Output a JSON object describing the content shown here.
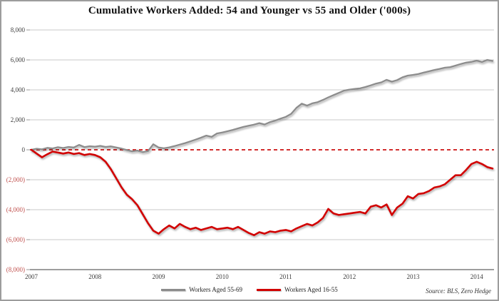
{
  "source": "Source: BLS, Zero Hedge",
  "chart_data": {
    "type": "line",
    "title": "Cumulative Workers Added: 54 and Younger vs 55 and Older ('000s)",
    "ylim": [
      -8000,
      8000
    ],
    "y_step": 2000,
    "grid_on": true,
    "grid_color": "#c9c9c9",
    "axis_color": "#7d7d7d",
    "tick_color": "#9a9a9a",
    "legend_position": "bottom-center",
    "y_tick_labels": [
      "8,000",
      "6,000",
      "4,000",
      "2,000",
      "0",
      "(2,000)",
      "(4,000)",
      "(6,000)",
      "(8,000)"
    ],
    "x_tick_labels": [
      "2007",
      "2008",
      "2009",
      "2010",
      "2011",
      "2012",
      "2013",
      "2014"
    ],
    "x_unit": "months, Jan 2007 - Apr 2014",
    "zero_line": {
      "style": "dashed",
      "color": "#cc1111"
    },
    "series": [
      {
        "name": "Workers Aged 55-69",
        "color": "#8c8c8c",
        "values": [
          0,
          70,
          30,
          130,
          90,
          170,
          120,
          190,
          150,
          330,
          180,
          240,
          210,
          260,
          190,
          230,
          150,
          80,
          -20,
          -100,
          -50,
          -150,
          -90,
          370,
          150,
          100,
          160,
          250,
          350,
          450,
          560,
          680,
          810,
          950,
          860,
          1090,
          1150,
          1240,
          1330,
          1430,
          1530,
          1610,
          1680,
          1780,
          1690,
          1850,
          1950,
          2080,
          2200,
          2400,
          2800,
          3080,
          2950,
          3100,
          3180,
          3330,
          3500,
          3650,
          3800,
          3950,
          4020,
          4060,
          4100,
          4190,
          4300,
          4420,
          4500,
          4670,
          4550,
          4650,
          4840,
          4950,
          5000,
          5060,
          5150,
          5240,
          5330,
          5400,
          5480,
          5520,
          5620,
          5730,
          5820,
          5870,
          5950,
          5860,
          6000,
          5930
        ]
      },
      {
        "name": "Workers Aged 16-55",
        "color": "#d10000",
        "values": [
          0,
          -250,
          -500,
          -300,
          -120,
          -180,
          -250,
          -180,
          -280,
          -220,
          -350,
          -280,
          -350,
          -500,
          -800,
          -1300,
          -1900,
          -2500,
          -3000,
          -3300,
          -3700,
          -4300,
          -4900,
          -5400,
          -5600,
          -5300,
          -5050,
          -5250,
          -4950,
          -5150,
          -5300,
          -5200,
          -5350,
          -5250,
          -5150,
          -5300,
          -5250,
          -5200,
          -5300,
          -5150,
          -5350,
          -5550,
          -5700,
          -5500,
          -5600,
          -5450,
          -5500,
          -5400,
          -5350,
          -5450,
          -5250,
          -5100,
          -4950,
          -5050,
          -4850,
          -4550,
          -3950,
          -4250,
          -4350,
          -4300,
          -4250,
          -4200,
          -4150,
          -4250,
          -3800,
          -3700,
          -3850,
          -3650,
          -4350,
          -3850,
          -3600,
          -3100,
          -3250,
          -2950,
          -2900,
          -2750,
          -2520,
          -2450,
          -2300,
          -2000,
          -1700,
          -1700,
          -1350,
          -950,
          -800,
          -950,
          -1150,
          -1250
        ]
      }
    ]
  }
}
